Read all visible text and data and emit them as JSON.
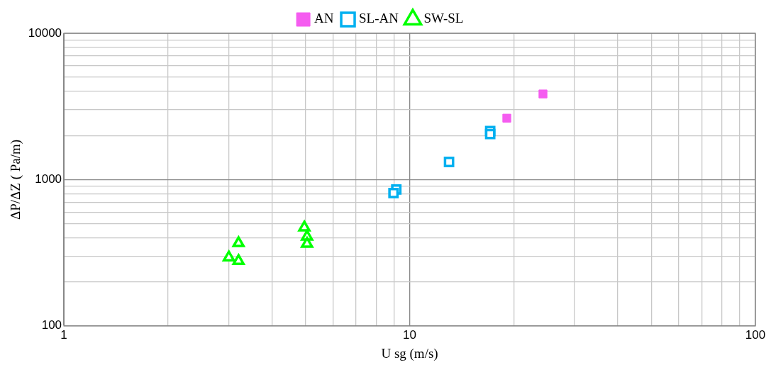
{
  "chart_data": {
    "type": "scatter",
    "xlabel": "U sg (m/s)",
    "ylabel": "ΔP/ΔZ ( Pa/m)",
    "log": "xy",
    "grid": true,
    "legend": "top",
    "xlim": [
      1,
      100
    ],
    "ylim": [
      100,
      10000
    ],
    "xticks": [
      1,
      {
        "value": 2,
        "label": null
      },
      {
        "value": 3,
        "label": null
      },
      {
        "value": 4,
        "label": null
      },
      {
        "value": 5,
        "label": null
      },
      {
        "value": 6,
        "label": null
      },
      {
        "value": 7,
        "label": null
      },
      {
        "value": 8,
        "label": null
      },
      {
        "value": 9,
        "label": null
      },
      10,
      {
        "value": 20,
        "label": null
      },
      {
        "value": 30,
        "label": null
      },
      {
        "value": 40,
        "label": null
      },
      {
        "value": 50,
        "label": null
      },
      {
        "value": 60,
        "label": null
      },
      {
        "value": 70,
        "label": null
      },
      {
        "value": 80,
        "label": null
      },
      {
        "value": 90,
        "label": null
      },
      100
    ],
    "yticks": [
      100,
      {
        "value": 200,
        "label": null
      },
      {
        "value": 300,
        "label": null
      },
      {
        "value": 400,
        "label": null
      },
      {
        "value": 500,
        "label": null
      },
      {
        "value": 600,
        "label": null
      },
      {
        "value": 700,
        "label": null
      },
      {
        "value": 800,
        "label": null
      },
      {
        "value": 900,
        "label": null
      },
      1000,
      {
        "value": 2000,
        "label": null
      },
      {
        "value": 3000,
        "label": null
      },
      {
        "value": 4000,
        "label": null
      },
      {
        "value": 5000,
        "label": null
      },
      {
        "value": 6000,
        "label": null
      },
      {
        "value": 7000,
        "label": null
      },
      {
        "value": 8000,
        "label": null
      },
      {
        "value": 9000,
        "label": null
      },
      10000
    ],
    "series": [
      {
        "name": "AN",
        "color": "#f55cf0",
        "marker": "square",
        "x": [
          19.1,
          24.3
        ],
        "values": [
          2630,
          3850
        ]
      },
      {
        "name": "SL-AN",
        "color": "#00b0f0",
        "marker": "square",
        "x": [
          17.1,
          17.1,
          13.0,
          9.15,
          8.98
        ],
        "values": [
          2150,
          2050,
          1320,
          855,
          810
        ]
      },
      {
        "name": "SW-SL",
        "color": "#00ff00",
        "marker": "triangle",
        "x": [
          3.2,
          3.0,
          3.2,
          4.96,
          5.05,
          5.05
        ],
        "values": [
          368,
          294,
          278,
          471,
          407,
          364
        ]
      }
    ]
  }
}
